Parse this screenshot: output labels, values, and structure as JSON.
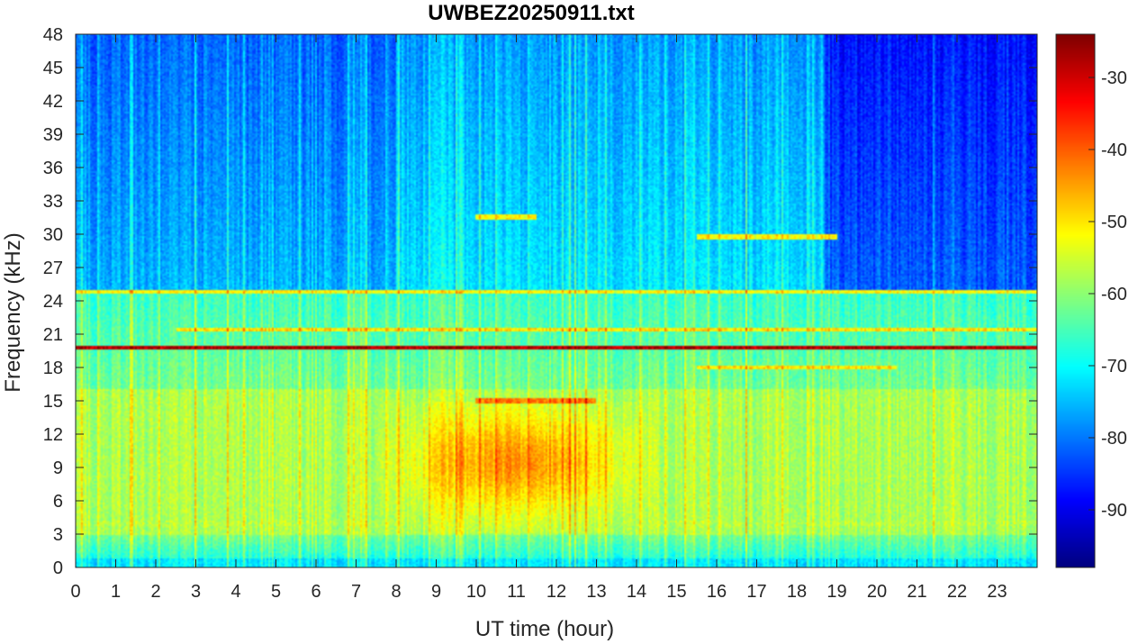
{
  "chart_data": {
    "type": "heatmap",
    "title": "UWBEZ20250911.txt",
    "xlabel": "UT time (hour)",
    "ylabel": "Frequency (kHz)",
    "xlim": [
      0,
      24
    ],
    "ylim": [
      0,
      48
    ],
    "x_ticks": [
      0,
      1,
      2,
      3,
      4,
      5,
      6,
      7,
      8,
      9,
      10,
      11,
      12,
      13,
      14,
      15,
      16,
      17,
      18,
      19,
      20,
      21,
      22,
      23
    ],
    "y_ticks": [
      0,
      3,
      6,
      9,
      12,
      15,
      18,
      21,
      24,
      27,
      30,
      33,
      36,
      39,
      42,
      45,
      48
    ],
    "colorbar": {
      "colormap": "jet",
      "range": [
        -98,
        -24
      ],
      "ticks": [
        -30,
        -40,
        -50,
        -60,
        -70,
        -80,
        -90
      ]
    },
    "features": [
      {
        "kind": "band",
        "frequency_khz": 19.8,
        "hours": [
          0,
          24
        ],
        "level_db": -28
      },
      {
        "kind": "band",
        "frequency_khz": 21.4,
        "hours": [
          2.5,
          24
        ],
        "level_db": -50
      },
      {
        "kind": "band",
        "frequency_khz": 24.8,
        "hours": [
          0,
          24
        ],
        "level_db": -52
      },
      {
        "kind": "band",
        "frequency_khz": 15.0,
        "hours": [
          10,
          13
        ],
        "level_db": -42
      },
      {
        "kind": "band",
        "frequency_khz": 31.5,
        "hours": [
          10,
          11.5
        ],
        "level_db": -52
      },
      {
        "kind": "band",
        "frequency_khz": 29.8,
        "hours": [
          15.5,
          19
        ],
        "level_db": -52
      },
      {
        "kind": "band",
        "frequency_khz": 18.0,
        "hours": [
          15.5,
          20.5
        ],
        "level_db": -50
      },
      {
        "kind": "band",
        "frequency_khz": 4.0,
        "hours": [
          0,
          24
        ],
        "level_db": -57
      },
      {
        "kind": "band",
        "frequency_khz": 8.0,
        "hours": [
          0,
          24
        ],
        "level_db": -58
      },
      {
        "kind": "enhancement",
        "frequency_khz": [
          3,
          15
        ],
        "hours": [
          8,
          14
        ],
        "level_db": -47
      }
    ]
  }
}
